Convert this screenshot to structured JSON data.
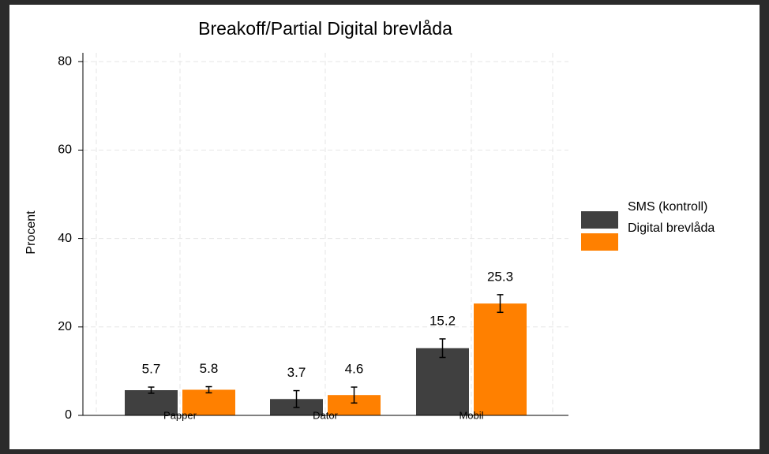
{
  "chart_data": {
    "type": "bar",
    "title": "Breakoff/Partial Digital brevlåda",
    "y_label": "Procent",
    "categories": [
      "Papper",
      "Dator",
      "Mobil"
    ],
    "series": [
      {
        "name": "SMS (kontroll)",
        "color": "#404040",
        "values": [
          5.7,
          3.7,
          15.2
        ],
        "errors": [
          0.7,
          1.9,
          2.1
        ]
      },
      {
        "name": "Digital brevlåda",
        "color": "#ff8000",
        "values": [
          5.8,
          4.6,
          25.3
        ],
        "errors": [
          0.7,
          1.8,
          2.0
        ]
      }
    ],
    "ylim": [
      0,
      82
    ],
    "yticks": [
      0,
      20,
      40,
      60,
      80
    ],
    "grid": true,
    "legend": "right"
  }
}
